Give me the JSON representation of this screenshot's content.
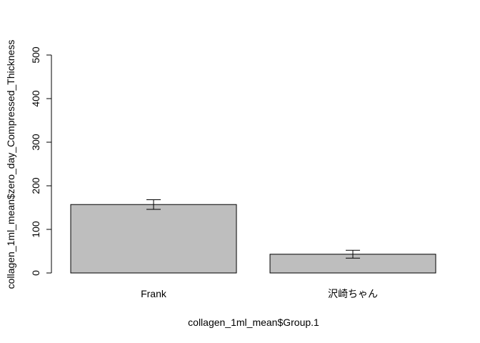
{
  "chart_data": {
    "type": "bar",
    "categories": [
      "Frank",
      "沢崎ちゃん"
    ],
    "values": [
      157,
      43
    ],
    "error_bars": [
      {
        "lower": 146,
        "upper": 168
      },
      {
        "lower": 34,
        "upper": 52
      }
    ],
    "xlabel": "collagen_1ml_mean$Group.1",
    "ylabel": "collagen_1ml_mean$zero_day_Compressed_Thickness",
    "ylim": [
      0,
      500
    ],
    "yticks": [
      0,
      100,
      200,
      300,
      400,
      500
    ],
    "bar_color": "#bebebe",
    "grid": false
  }
}
